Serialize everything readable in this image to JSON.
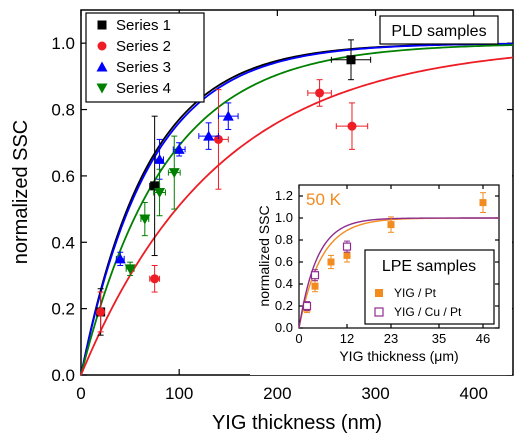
{
  "chart_data": [
    {
      "type": "scatter",
      "xlabel": "YIG thickness (nm)",
      "ylabel": "normalized SSC",
      "xlim": [
        0,
        440
      ],
      "ylim": [
        0,
        1.1
      ],
      "xticks": [
        0,
        100,
        200,
        300,
        400
      ],
      "yticks": [
        0.0,
        0.2,
        0.4,
        0.6,
        0.8,
        1.0
      ],
      "grid": false,
      "legend_position": "top-left",
      "annotation": "PLD samples",
      "series": [
        {
          "name": "Series 1",
          "color": "#000000",
          "marker": "square",
          "x": [
            20,
            75,
            275
          ],
          "y": [
            0.19,
            0.57,
            0.95
          ],
          "xerr": [
            3,
            5,
            20
          ],
          "yerr": [
            0.07,
            0.21,
            0.06
          ]
        },
        {
          "name": "Series 2",
          "color": "#ee1c24",
          "marker": "circle",
          "x": [
            20,
            75,
            140,
            243,
            276
          ],
          "y": [
            0.19,
            0.29,
            0.71,
            0.85,
            0.75
          ],
          "xerr": [
            3,
            5,
            10,
            12,
            16
          ],
          "yerr": [
            0.06,
            0.04,
            0.15,
            0.04,
            0.07
          ]
        },
        {
          "name": "Series 3",
          "color": "#0000ff",
          "marker": "triangle-up",
          "x": [
            40,
            80,
            100,
            130,
            150
          ],
          "y": [
            0.35,
            0.65,
            0.68,
            0.72,
            0.78
          ],
          "xerr": [
            4,
            4,
            6,
            10,
            10
          ],
          "yerr": [
            0.02,
            0.06,
            0.02,
            0.04,
            0.04
          ]
        },
        {
          "name": "Series 4",
          "color": "#008000",
          "marker": "triangle-down",
          "x": [
            50,
            65,
            80,
            95
          ],
          "y": [
            0.32,
            0.47,
            0.55,
            0.61
          ],
          "xerr": [
            4,
            4,
            6,
            6
          ],
          "yerr": [
            0.02,
            0.05,
            0.07,
            0.11
          ]
        }
      ],
      "fits": [
        {
          "color": "#000000",
          "decay_length_nm": 68,
          "amplitude": 1.0
        },
        {
          "color": "#0000ff",
          "decay_length_nm": 70,
          "amplitude": 1.0
        },
        {
          "color": "#008000",
          "decay_length_nm": 85,
          "amplitude": 1.0
        },
        {
          "color": "#ee1c24",
          "decay_length_nm": 140,
          "amplitude": 1.0
        }
      ]
    },
    {
      "type": "scatter",
      "xlabel": "YIG thickness (μm)",
      "ylabel": "normalized SSC",
      "xlim": [
        0,
        50
      ],
      "ylim": [
        0,
        1.3
      ],
      "xticks": [
        0,
        12,
        23,
        35,
        46
      ],
      "yticks": [
        0.0,
        0.2,
        0.4,
        0.6,
        0.8,
        1.0,
        1.2
      ],
      "annotation": "50 K",
      "legend_title": "LPE samples",
      "series": [
        {
          "name": "YIG / Pt",
          "color": "#f28b20",
          "marker": "square-filled",
          "x": [
            2,
            4,
            8,
            12,
            23,
            46
          ],
          "y": [
            0.18,
            0.38,
            0.6,
            0.66,
            0.94,
            1.14
          ],
          "yerr": [
            0.04,
            0.05,
            0.06,
            0.06,
            0.07,
            0.09
          ]
        },
        {
          "name": "YIG / Cu / Pt",
          "color": "#8e2d8e",
          "marker": "square-open",
          "x": [
            2,
            4,
            12
          ],
          "y": [
            0.2,
            0.48,
            0.74
          ],
          "yerr": [
            0.04,
            0.05,
            0.05
          ]
        }
      ],
      "fits": [
        {
          "color": "#f28b20",
          "decay_length_um": 5.5,
          "amplitude": 1.0
        },
        {
          "color": "#8e2d8e",
          "decay_length_um": 4.5,
          "amplitude": 1.0
        }
      ]
    }
  ]
}
